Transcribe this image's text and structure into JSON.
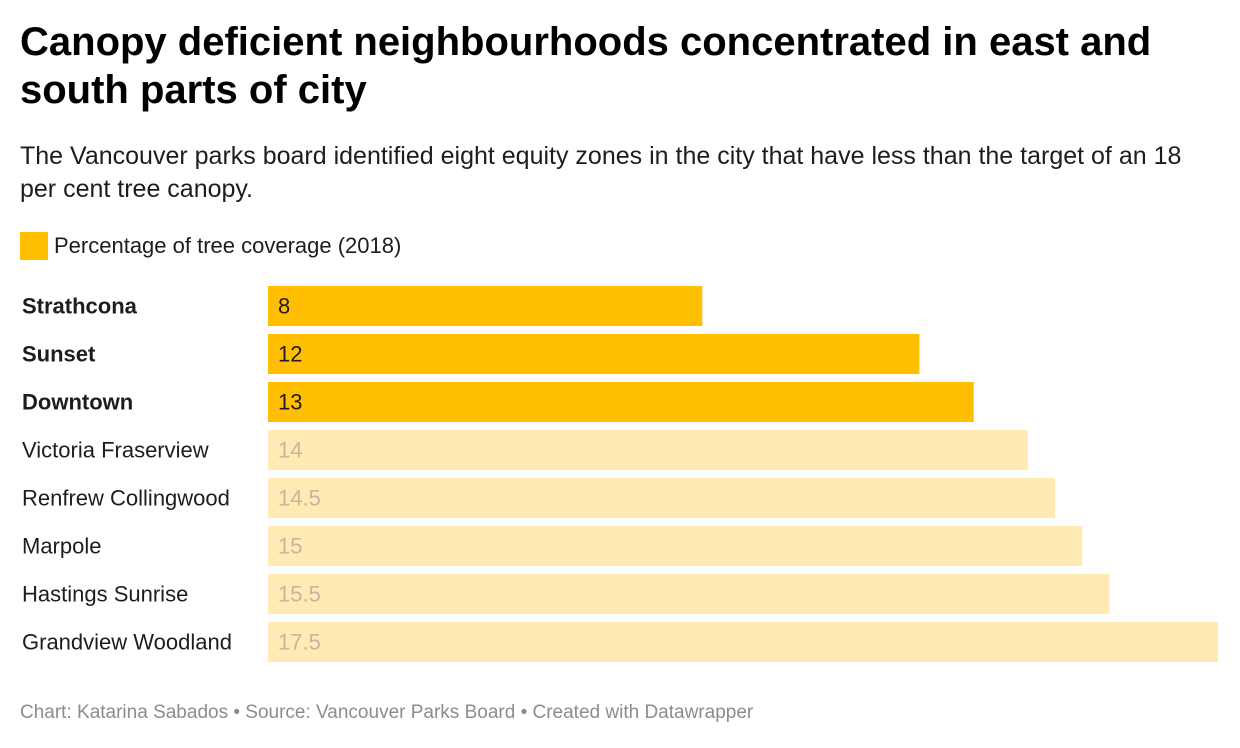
{
  "title": "Canopy deficient neighbourhoods concentrated in east and south parts of city",
  "subtitle": "The Vancouver parks board identified eight equity zones in the city that have less than the target of an 18 per cent tree canopy.",
  "legend": {
    "label": "Percentage of tree coverage (2018)",
    "color": "#ffbf00"
  },
  "footer": "Chart: Katarina Sabados • Source: Vancouver Parks Board • Created with Datawrapper",
  "colors": {
    "highlight": "#ffbf00",
    "muted": "#ffeab3",
    "highlight_text": "#1d1d1d",
    "muted_text": "#c2b79f"
  },
  "chart_data": {
    "type": "bar",
    "orientation": "horizontal",
    "title": "Canopy deficient neighbourhoods concentrated in east and south parts of city",
    "series_name": "Percentage of tree coverage (2018)",
    "categories": [
      "Strathcona",
      "Sunset",
      "Downtown",
      "Victoria Fraserview",
      "Renfrew Collingwood",
      "Marpole",
      "Hastings Sunrise",
      "Grandview Woodland"
    ],
    "values": [
      8,
      12,
      13,
      14,
      14.5,
      15,
      15.5,
      17.5
    ],
    "value_labels": [
      "8",
      "12",
      "13",
      "14",
      "14.5",
      "15",
      "15.5",
      "17.5"
    ],
    "highlighted": [
      true,
      true,
      true,
      false,
      false,
      false,
      false,
      false
    ],
    "xlim": [
      0,
      17.5
    ],
    "xlabel": "",
    "ylabel": ""
  }
}
